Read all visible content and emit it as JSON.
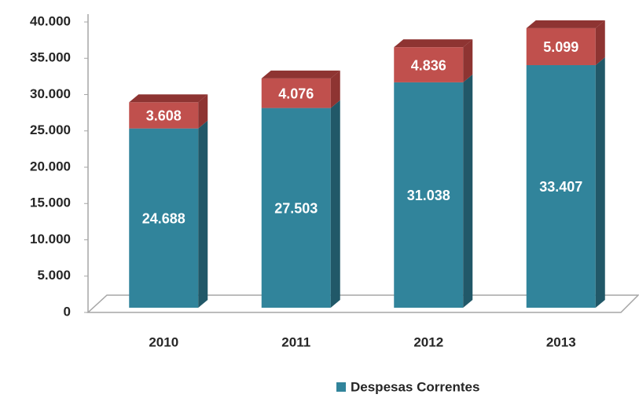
{
  "chart_data": {
    "type": "bar",
    "stacked": true,
    "three_d": true,
    "categories": [
      "2010",
      "2011",
      "2012",
      "2013"
    ],
    "series": [
      {
        "name": "Despesas Correntes",
        "color": "#31849b",
        "side_color": "#215868",
        "values": [
          24688,
          27503,
          31038,
          33407
        ],
        "value_labels": [
          "24.688",
          "27.503",
          "31.038",
          "33.407"
        ]
      },
      {
        "color": "#c0504d",
        "side_color": "#8e3432",
        "values": [
          3608,
          4076,
          4836,
          5099
        ],
        "value_labels": [
          "3.608",
          "4.076",
          "4.836",
          "5.099"
        ]
      }
    ],
    "legend_series": [
      0
    ],
    "ylim": [
      0,
      40000
    ],
    "yticks": [
      {
        "value": 0,
        "label": "0"
      },
      {
        "value": 5000,
        "label": "5.000"
      },
      {
        "value": 10000,
        "label": "10.000"
      },
      {
        "value": 15000,
        "label": "15.000"
      },
      {
        "value": 20000,
        "label": "20.000"
      },
      {
        "value": 25000,
        "label": "25.000"
      },
      {
        "value": 30000,
        "label": "30.000"
      },
      {
        "value": 35000,
        "label": "35.000"
      },
      {
        "value": 40000,
        "label": "40.000"
      }
    ],
    "legend": "bottom"
  }
}
